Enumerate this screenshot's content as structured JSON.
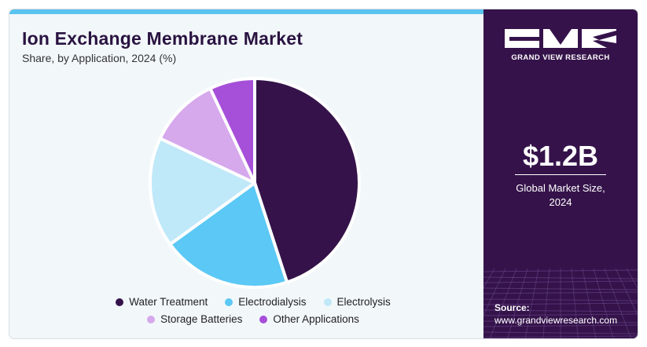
{
  "header": {
    "title": "Ion Exchange Membrane Market",
    "subtitle": "Share, by Application, 2024 (%)"
  },
  "colors": {
    "accent_bar": "#5bc3ef",
    "side_panel": "#35134a",
    "title_text": "#2a1341"
  },
  "chart_data": {
    "type": "pie",
    "title": "Ion Exchange Membrane Market",
    "subtitle": "Share, by Application, 2024 (%)",
    "legend_position": "bottom",
    "slices": [
      {
        "label": "Water Treatment",
        "value": 45.0,
        "color": "#35134a"
      },
      {
        "label": "Electrodialysis",
        "value": 20.0,
        "color": "#5bc8f5"
      },
      {
        "label": "Electrolysis",
        "value": 17.0,
        "color": "#bfe8f8"
      },
      {
        "label": "Storage Batteries",
        "value": 11.0,
        "color": "#d6a8ec"
      },
      {
        "label": "Other Applications",
        "value": 7.0,
        "color": "#a64fd9"
      }
    ]
  },
  "sidebar": {
    "brand": "GRAND VIEW RESEARCH",
    "market_value": "$1.2B",
    "market_label_1": "Global Market Size,",
    "market_label_2": "2024",
    "source_label": "Source:",
    "source_url": "www.grandviewresearch.com"
  }
}
